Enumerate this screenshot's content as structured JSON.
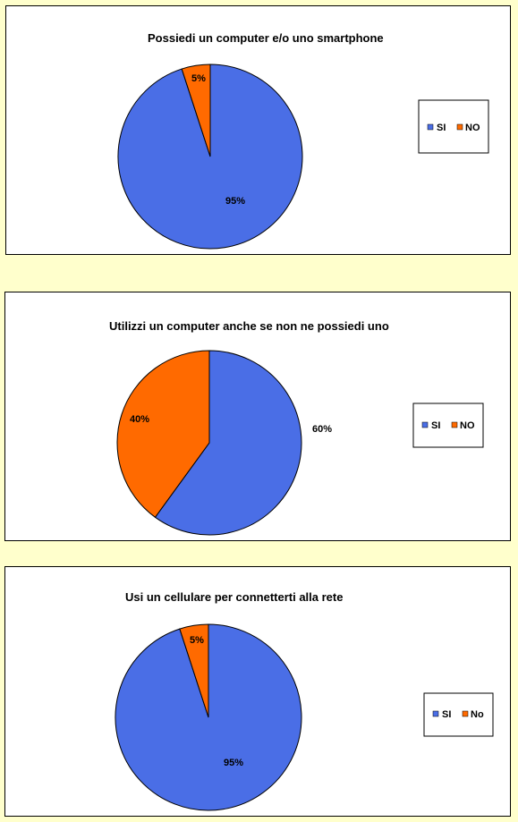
{
  "chart_data": [
    {
      "type": "pie",
      "title": "Possiedi un computer e/o uno smartphone",
      "categories": [
        "SI",
        "NO"
      ],
      "values": [
        95,
        5
      ],
      "labels": [
        "95%",
        "5%"
      ],
      "colors": [
        "#4a6ee6",
        "#ff6a00"
      ],
      "legend": "right"
    },
    {
      "type": "pie",
      "title": "Utilizzi un computer anche se non ne possiedi  uno",
      "categories": [
        "SI",
        "NO"
      ],
      "values": [
        60,
        40
      ],
      "labels": [
        "60%",
        "40%"
      ],
      "colors": [
        "#4a6ee6",
        "#ff6a00"
      ],
      "legend": "right"
    },
    {
      "type": "pie",
      "title": "Usi un cellulare per connetterti alla rete",
      "categories": [
        "SI",
        "No"
      ],
      "values": [
        95,
        5
      ],
      "labels": [
        "95%",
        "5%"
      ],
      "colors": [
        "#4a6ee6",
        "#ff6a00"
      ],
      "legend": "right"
    }
  ]
}
